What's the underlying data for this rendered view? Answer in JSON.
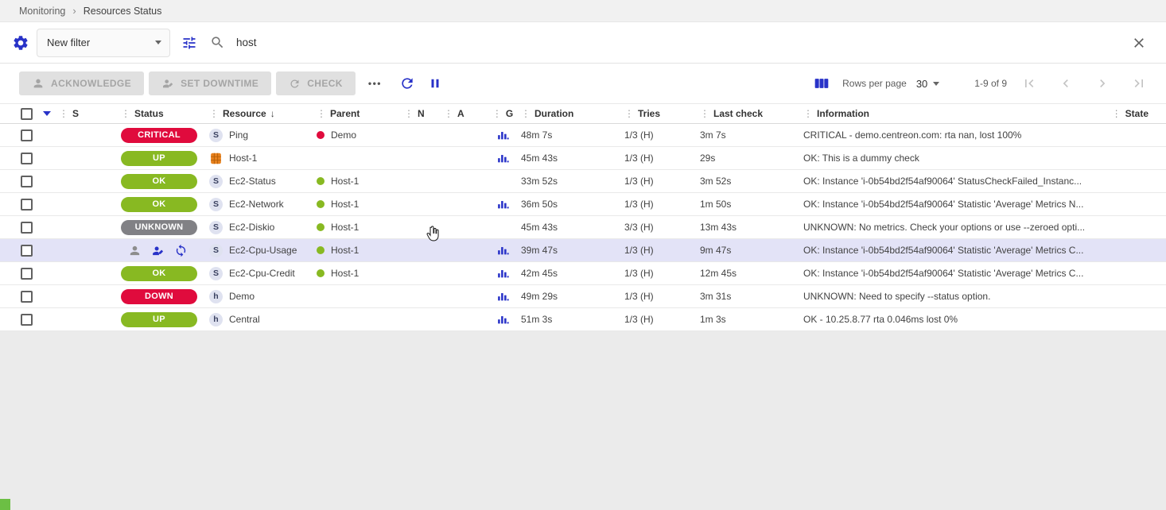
{
  "icons": {
    "column_dots": "⋮",
    "sort_desc": "↓",
    "breadcrumb_separator": "›",
    "more": "•••"
  },
  "colors": {
    "accent_blue": "#2832c8",
    "ok_green": "#88b922",
    "critical_red": "#e00b3d",
    "unknown_gray": "#818185",
    "row_highlight": "#e3e3f7"
  },
  "breadcrumb": {
    "items": [
      "Monitoring",
      "Resources Status"
    ]
  },
  "filter_bar": {
    "filter_select_value": "New filter",
    "search_value": "host"
  },
  "toolbar": {
    "acknowledge_label": "ACKNOWLEDGE",
    "set_downtime_label": "SET DOWNTIME",
    "check_label": "CHECK",
    "rows_per_page_label": "Rows per page",
    "rows_per_page_value": "30",
    "pagination_range": "1-9 of 9"
  },
  "table": {
    "columns": [
      "S",
      "Status",
      "Resource",
      "Parent",
      "N",
      "A",
      "G",
      "Duration",
      "Tries",
      "Last check",
      "Information",
      "State"
    ],
    "rows": [
      {
        "status": {
          "label": "CRITICAL",
          "color": "#e00b3d"
        },
        "resource": {
          "icon": "service",
          "label": "Ping"
        },
        "parent": {
          "label": "Demo",
          "color": "#e00b3d"
        },
        "graph": true,
        "duration": "48m 7s",
        "tries": "1/3 (H)",
        "last_check": "3m 7s",
        "information": "CRITICAL - demo.centreon.com: rta nan, lost 100%"
      },
      {
        "status": {
          "label": "UP",
          "color": "#88b922"
        },
        "resource": {
          "icon": "host-custom",
          "label": "Host-1"
        },
        "parent": null,
        "graph": true,
        "duration": "45m 43s",
        "tries": "1/3 (H)",
        "last_check": "29s",
        "information": "OK: This is a dummy check"
      },
      {
        "status": {
          "label": "OK",
          "color": "#88b922"
        },
        "resource": {
          "icon": "service",
          "label": "Ec2-Status"
        },
        "parent": {
          "label": "Host-1",
          "color": "#88b922"
        },
        "graph": false,
        "duration": "33m 52s",
        "tries": "1/3 (H)",
        "last_check": "3m 52s",
        "information": "OK: Instance 'i-0b54bd2f54af90064' StatusCheckFailed_Instanc..."
      },
      {
        "status": {
          "label": "OK",
          "color": "#88b922"
        },
        "resource": {
          "icon": "service",
          "label": "Ec2-Network"
        },
        "parent": {
          "label": "Host-1",
          "color": "#88b922"
        },
        "graph": true,
        "duration": "36m 50s",
        "tries": "1/3 (H)",
        "last_check": "1m 50s",
        "information": "OK: Instance 'i-0b54bd2f54af90064' Statistic 'Average' Metrics N..."
      },
      {
        "status": {
          "label": "UNKNOWN",
          "color": "#818185"
        },
        "resource": {
          "icon": "service",
          "label": "Ec2-Diskio"
        },
        "parent": {
          "label": "Host-1",
          "color": "#88b922"
        },
        "graph": false,
        "duration": "45m 43s",
        "tries": "3/3 (H)",
        "last_check": "13m 43s",
        "information": "UNKNOWN: No metrics. Check your options or use --zeroed opti..."
      },
      {
        "status": null,
        "state_icons": [
          "acknowledged-icon",
          "downtime-icon",
          "sync-icon"
        ],
        "highlighted": true,
        "resource": {
          "icon": "service",
          "label": "Ec2-Cpu-Usage"
        },
        "parent": {
          "label": "Host-1",
          "color": "#88b922"
        },
        "graph": true,
        "duration": "39m 47s",
        "tries": "1/3 (H)",
        "last_check": "9m 47s",
        "information": "OK: Instance 'i-0b54bd2f54af90064' Statistic 'Average' Metrics C..."
      },
      {
        "status": {
          "label": "OK",
          "color": "#88b922"
        },
        "resource": {
          "icon": "service",
          "label": "Ec2-Cpu-Credit"
        },
        "parent": {
          "label": "Host-1",
          "color": "#88b922"
        },
        "graph": true,
        "duration": "42m 45s",
        "tries": "1/3 (H)",
        "last_check": "12m 45s",
        "information": "OK: Instance 'i-0b54bd2f54af90064' Statistic 'Average' Metrics C..."
      },
      {
        "status": {
          "label": "DOWN",
          "color": "#e00b3d"
        },
        "resource": {
          "icon": "host",
          "label": "Demo"
        },
        "parent": null,
        "graph": true,
        "duration": "49m 29s",
        "tries": "1/3 (H)",
        "last_check": "3m 31s",
        "information": "UNKNOWN: Need to specify --status option."
      },
      {
        "status": {
          "label": "UP",
          "color": "#88b922"
        },
        "resource": {
          "icon": "host",
          "label": "Central"
        },
        "parent": null,
        "graph": true,
        "duration": "51m 3s",
        "tries": "1/3 (H)",
        "last_check": "1m 3s",
        "information": "OK - 10.25.8.77 rta 0.046ms lost 0%"
      }
    ]
  }
}
